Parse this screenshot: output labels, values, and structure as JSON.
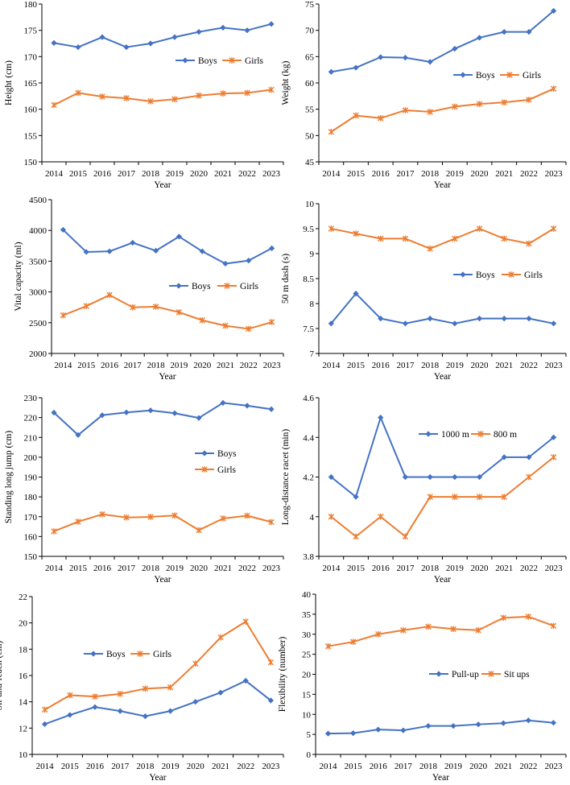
{
  "colors": {
    "blue": "#4472C4",
    "orange": "#ED7D31",
    "axis": "#000000"
  },
  "chart_data": [
    {
      "type": "line",
      "title": "",
      "xlabel": "Year",
      "ylabel": "Height (cm)",
      "categories": [
        "2014",
        "2015",
        "2016",
        "2017",
        "2018",
        "2019",
        "2020",
        "2021",
        "2022",
        "2023"
      ],
      "ylim": [
        150,
        180
      ],
      "yticks": [
        150,
        155,
        160,
        165,
        170,
        175,
        180
      ],
      "yticklabels": [
        "150",
        "155",
        "160",
        "165",
        "170",
        "175",
        "180"
      ],
      "legend": "center-right",
      "series": [
        {
          "name": "Boys",
          "color": "#4472C4",
          "marker": "diamond",
          "values": [
            172.6,
            171.8,
            173.7,
            171.8,
            172.5,
            173.7,
            174.7,
            175.5,
            175.0,
            176.2
          ]
        },
        {
          "name": "Girls",
          "color": "#ED7D31",
          "marker": "star",
          "values": [
            160.8,
            163.1,
            162.4,
            162.1,
            161.5,
            161.9,
            162.6,
            163.0,
            163.1,
            163.7
          ]
        }
      ]
    },
    {
      "type": "line",
      "title": "",
      "xlabel": "Year",
      "ylabel": "Weight (kg)",
      "categories": [
        "2014",
        "2015",
        "2016",
        "2017",
        "2018",
        "2019",
        "2020",
        "2021",
        "2022",
        "2023"
      ],
      "ylim": [
        45,
        75
      ],
      "yticks": [
        45,
        50,
        55,
        60,
        65,
        70,
        75
      ],
      "yticklabels": [
        "45",
        "50",
        "55",
        "60",
        "65",
        "70",
        "75"
      ],
      "legend": "center-right",
      "series": [
        {
          "name": "Boys",
          "color": "#4472C4",
          "marker": "diamond",
          "values": [
            62.1,
            62.9,
            64.9,
            64.8,
            64.0,
            66.5,
            68.6,
            69.7,
            69.7,
            73.7
          ]
        },
        {
          "name": "Girls",
          "color": "#ED7D31",
          "marker": "star",
          "values": [
            50.7,
            53.8,
            53.3,
            54.8,
            54.5,
            55.5,
            56.0,
            56.3,
            56.8,
            58.9
          ]
        }
      ]
    },
    {
      "type": "line",
      "title": "",
      "xlabel": "Year",
      "ylabel": "Vital capacity (ml)",
      "categories": [
        "2014",
        "2015",
        "2016",
        "2017",
        "2018",
        "2019",
        "2020",
        "2021",
        "2022",
        "2023"
      ],
      "ylim": [
        2000,
        4500
      ],
      "yticks": [
        2000,
        2500,
        3000,
        3500,
        4000,
        4500
      ],
      "yticklabels": [
        "2000",
        "2500",
        "3000",
        "3500",
        "4000",
        "4500"
      ],
      "legend": "center-right",
      "series": [
        {
          "name": "Boys",
          "color": "#4472C4",
          "marker": "diamond",
          "values": [
            4010,
            3650,
            3660,
            3800,
            3670,
            3900,
            3660,
            3460,
            3510,
            3710
          ]
        },
        {
          "name": "Girls",
          "color": "#ED7D31",
          "marker": "star",
          "values": [
            2620,
            2770,
            2950,
            2750,
            2760,
            2670,
            2540,
            2450,
            2400,
            2510
          ]
        }
      ]
    },
    {
      "type": "line",
      "title": "",
      "xlabel": "Year",
      "ylabel": "50 m dash (s)",
      "categories": [
        "2014",
        "2015",
        "2016",
        "2017",
        "2018",
        "2019",
        "2020",
        "2021",
        "2022",
        "2023"
      ],
      "ylim": [
        7,
        10
      ],
      "yticks": [
        7,
        7.5,
        8,
        8.5,
        9,
        9.5,
        10
      ],
      "yticklabels": [
        "7",
        "7.5",
        "8",
        "8.5",
        "9",
        "9.5",
        "10"
      ],
      "legend": "center-right",
      "series": [
        {
          "name": "Boys",
          "color": "#4472C4",
          "marker": "diamond",
          "values": [
            7.6,
            8.2,
            7.7,
            7.6,
            7.7,
            7.6,
            7.7,
            7.7,
            7.7,
            7.6
          ]
        },
        {
          "name": "Girls",
          "color": "#ED7D31",
          "marker": "star",
          "values": [
            9.5,
            9.4,
            9.3,
            9.3,
            9.1,
            9.3,
            9.5,
            9.3,
            9.2,
            9.5
          ]
        }
      ]
    },
    {
      "type": "line",
      "title": "",
      "xlabel": "Year",
      "ylabel": "Standing long jump (cm)",
      "categories": [
        "2014",
        "2015",
        "2016",
        "2017",
        "2018",
        "2019",
        "2020",
        "2021",
        "2022",
        "2023"
      ],
      "ylim": [
        150,
        230
      ],
      "yticks": [
        150,
        160,
        170,
        180,
        190,
        200,
        210,
        220,
        230
      ],
      "yticklabels": [
        "150",
        "160",
        "170",
        "180",
        "190",
        "200",
        "210",
        "220",
        "230"
      ],
      "legend": "right",
      "series": [
        {
          "name": "Boys",
          "color": "#4472C4",
          "marker": "diamond",
          "values": [
            222.5,
            211.2,
            221.2,
            222.6,
            223.6,
            222.2,
            219.8,
            227.4,
            226.0,
            224.2
          ]
        },
        {
          "name": "Girls",
          "color": "#ED7D31",
          "marker": "star",
          "values": [
            162.6,
            167.5,
            171.2,
            169.6,
            169.9,
            170.6,
            163.2,
            169.1,
            170.5,
            167.3
          ]
        }
      ]
    },
    {
      "type": "line",
      "title": "",
      "xlabel": "Year",
      "ylabel": "Long-distance racet (min)",
      "categories": [
        "2014",
        "2015",
        "2016",
        "2017",
        "2018",
        "2019",
        "2020",
        "2021",
        "2022",
        "2023"
      ],
      "ylim": [
        3.8,
        4.6
      ],
      "yticks": [
        3.8,
        4,
        4.2,
        4.4,
        4.6
      ],
      "yticklabels": [
        "3.8",
        "4",
        "4.2",
        "4.4",
        "4.6"
      ],
      "legend": "top-right",
      "series": [
        {
          "name": "1000 m",
          "color": "#4472C4",
          "marker": "diamond",
          "values": [
            4.2,
            4.1,
            4.5,
            4.2,
            4.2,
            4.2,
            4.2,
            4.3,
            4.3,
            4.4
          ]
        },
        {
          "name": "800 m",
          "color": "#ED7D31",
          "marker": "star",
          "values": [
            4.0,
            3.9,
            4.0,
            3.9,
            4.1,
            4.1,
            4.1,
            4.1,
            4.2,
            4.3
          ]
        }
      ]
    },
    {
      "type": "line",
      "title": "",
      "xlabel": "Year",
      "ylabel": "Sit-and-reach (cm)",
      "categories": [
        "2014",
        "2015",
        "2016",
        "2017",
        "2018",
        "2019",
        "2020",
        "2021",
        "2022",
        "2023"
      ],
      "ylim": [
        10,
        22
      ],
      "yticks": [
        10,
        12,
        14,
        16,
        18,
        20,
        22
      ],
      "yticklabels": [
        "10",
        "12",
        "14",
        "16",
        "18",
        "20",
        "22"
      ],
      "legend": "center-left",
      "series": [
        {
          "name": "Boys",
          "color": "#4472C4",
          "marker": "diamond",
          "values": [
            12.3,
            13.0,
            13.6,
            13.3,
            12.9,
            13.3,
            14.0,
            14.7,
            15.6,
            14.1
          ]
        },
        {
          "name": "Girls",
          "color": "#ED7D31",
          "marker": "star",
          "values": [
            13.4,
            14.5,
            14.4,
            14.6,
            15.0,
            15.1,
            16.9,
            18.9,
            20.1,
            17.0
          ]
        }
      ]
    },
    {
      "type": "line",
      "title": "",
      "xlabel": "Year",
      "ylabel": "Flexibility (number)",
      "categories": [
        "2014",
        "2015",
        "2016",
        "2017",
        "2018",
        "2019",
        "2020",
        "2021",
        "2022",
        "2023"
      ],
      "ylim": [
        0,
        40
      ],
      "yticks": [
        0,
        5,
        10,
        15,
        20,
        25,
        30,
        35,
        40
      ],
      "yticklabels": [
        "0",
        "5",
        "10",
        "15",
        "20",
        "25",
        "30",
        "35",
        "40"
      ],
      "legend": "center-right",
      "series": [
        {
          "name": "Pull-up",
          "color": "#4472C4",
          "marker": "diamond",
          "values": [
            5.2,
            5.3,
            6.2,
            6.0,
            7.1,
            7.1,
            7.5,
            7.8,
            8.5,
            7.9
          ]
        },
        {
          "name": "Sit ups",
          "color": "#ED7D31",
          "marker": "star",
          "values": [
            27.0,
            28.1,
            30.0,
            31.0,
            31.9,
            31.3,
            31.0,
            34.1,
            34.4,
            32.1
          ]
        }
      ]
    }
  ]
}
